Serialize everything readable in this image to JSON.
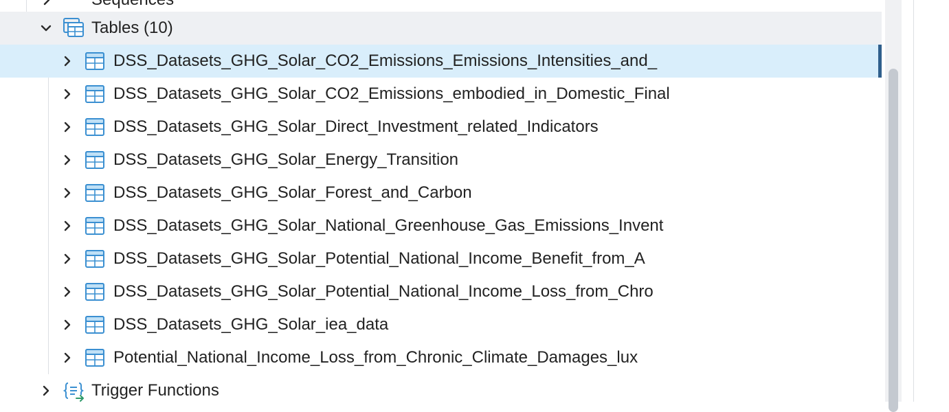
{
  "tree": {
    "partial_item": {
      "label": "Sequences",
      "icon": "sequence-icon",
      "expanded": false
    },
    "tables_group": {
      "label": "Tables (10)",
      "icon": "tables-folder-icon",
      "expanded": true
    },
    "tables": [
      {
        "label": "DSS_Datasets_GHG_Solar_CO2_Emissions_Emissions_Intensities_and_",
        "selected": true
      },
      {
        "label": "DSS_Datasets_GHG_Solar_CO2_Emissions_embodied_in_Domestic_Final",
        "selected": false
      },
      {
        "label": "DSS_Datasets_GHG_Solar_Direct_Investment_related_Indicators",
        "selected": false
      },
      {
        "label": "DSS_Datasets_GHG_Solar_Energy_Transition",
        "selected": false
      },
      {
        "label": "DSS_Datasets_GHG_Solar_Forest_and_Carbon",
        "selected": false
      },
      {
        "label": "DSS_Datasets_GHG_Solar_National_Greenhouse_Gas_Emissions_Invent",
        "selected": false
      },
      {
        "label": "DSS_Datasets_GHG_Solar_Potential_National_Income_Benefit_from_A",
        "selected": false
      },
      {
        "label": "DSS_Datasets_GHG_Solar_Potential_National_Income_Loss_from_Chro",
        "selected": false
      },
      {
        "label": "DSS_Datasets_GHG_Solar_iea_data",
        "selected": false
      },
      {
        "label": "Potential_National_Income_Loss_from_Chronic_Climate_Damages_lux",
        "selected": false
      }
    ],
    "trigger_functions": {
      "label": "Trigger Functions",
      "icon": "trigger-function-icon",
      "expanded": false
    }
  },
  "colors": {
    "icon_blue": "#3a8fd1",
    "chevron": "#2b2b2b",
    "selected_bg": "#d9eefb",
    "selected_bar": "#2f5f8c",
    "hover_bg": "#eef0f3",
    "scroll_thumb": "#c4c9d0"
  }
}
